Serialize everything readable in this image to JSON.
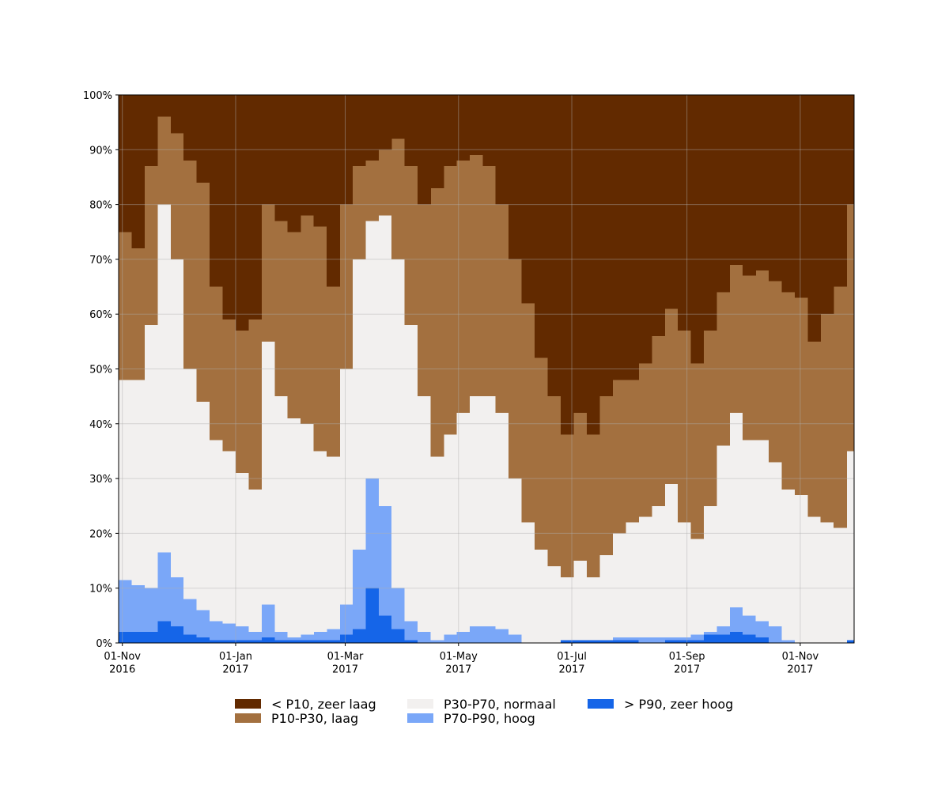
{
  "chart_data": {
    "type": "stacked-area",
    "x": [
      "2016-10-30",
      "2016-11-06",
      "2016-11-13",
      "2016-11-20",
      "2016-11-27",
      "2016-12-04",
      "2016-12-11",
      "2016-12-18",
      "2016-12-25",
      "2017-01-01",
      "2017-01-08",
      "2017-01-15",
      "2017-01-22",
      "2017-01-29",
      "2017-02-05",
      "2017-02-12",
      "2017-02-19",
      "2017-02-26",
      "2017-03-05",
      "2017-03-12",
      "2017-03-19",
      "2017-03-26",
      "2017-04-02",
      "2017-04-09",
      "2017-04-16",
      "2017-04-23",
      "2017-04-30",
      "2017-05-07",
      "2017-05-14",
      "2017-05-21",
      "2017-05-28",
      "2017-06-04",
      "2017-06-11",
      "2017-06-18",
      "2017-06-25",
      "2017-07-02",
      "2017-07-09",
      "2017-07-16",
      "2017-07-23",
      "2017-07-30",
      "2017-08-06",
      "2017-08-13",
      "2017-08-20",
      "2017-08-27",
      "2017-09-03",
      "2017-09-10",
      "2017-09-17",
      "2017-09-24",
      "2017-10-01",
      "2017-10-08",
      "2017-10-15",
      "2017-10-22",
      "2017-10-29",
      "2017-11-05",
      "2017-11-12",
      "2017-11-19",
      "2017-11-26"
    ],
    "series": [
      {
        "name": "< P10, zeer laag",
        "color": "#622a00",
        "values": [
          25,
          28,
          13,
          4,
          7,
          12,
          16,
          35,
          41,
          43,
          41,
          20,
          23,
          25,
          22,
          24,
          35,
          20,
          13,
          12,
          10,
          8,
          13,
          20,
          17,
          13,
          12,
          11,
          13,
          20,
          30,
          38,
          48,
          55,
          62,
          58,
          62,
          55,
          52,
          52,
          49,
          44,
          39,
          43,
          49,
          43,
          36,
          31,
          33,
          32,
          34,
          36,
          37,
          45,
          40,
          35,
          20
        ]
      },
      {
        "name": "P10-P30, laag",
        "color": "#a3703f",
        "values": [
          27,
          24,
          29,
          16,
          23,
          38,
          40,
          28,
          24,
          26,
          31,
          25,
          32,
          34,
          38,
          41,
          31,
          30,
          17,
          11,
          12,
          22,
          29,
          35,
          49,
          49,
          46,
          44,
          42,
          38,
          40,
          40,
          35,
          31,
          26,
          27,
          26,
          29,
          28,
          26,
          28,
          31,
          32,
          35,
          32,
          32,
          28,
          27,
          30,
          31,
          33,
          36,
          36,
          32,
          38,
          44,
          45
        ]
      },
      {
        "name": "P30-P70, normaal",
        "color": "#f2f0ef",
        "values": [
          36.5,
          37.5,
          48,
          63.5,
          58,
          42,
          38,
          33,
          31.5,
          28,
          26,
          48,
          43,
          40,
          38.5,
          33,
          31.5,
          43,
          53,
          47,
          53,
          60,
          54,
          43,
          33.5,
          36.5,
          40,
          42,
          42,
          39.5,
          28.5,
          22,
          17,
          14,
          11.5,
          14.5,
          11.5,
          15.5,
          19,
          21,
          22,
          24,
          28,
          21,
          17.5,
          23,
          33,
          35.5,
          32,
          33,
          30,
          27.5,
          27,
          23,
          22,
          21,
          34.5
        ]
      },
      {
        "name": "P70-P90, hoog",
        "color": "#7aa7f8",
        "values": [
          9.5,
          8.5,
          8,
          12.5,
          9,
          6.5,
          5,
          3.5,
          3,
          2.5,
          1.5,
          6,
          1.5,
          0.5,
          1,
          1.5,
          2,
          5.5,
          14.5,
          20,
          20,
          7.5,
          3.5,
          2,
          0.5,
          1.5,
          2,
          3,
          3,
          2.5,
          1.5,
          0,
          0,
          0,
          0,
          0,
          0,
          0,
          0.5,
          0.5,
          1,
          1,
          0.5,
          0.5,
          1,
          0.5,
          1.5,
          4.5,
          3.5,
          3,
          3,
          0.5,
          0,
          0,
          0,
          0,
          0
        ]
      },
      {
        "name": "> P90, zeer hoog",
        "color": "#1565e8",
        "values": [
          2,
          2,
          2,
          4,
          3,
          1.5,
          1,
          0.5,
          0.5,
          0.5,
          0.5,
          1,
          0.5,
          0.5,
          0.5,
          0.5,
          0.5,
          1.5,
          2.5,
          10,
          5,
          2.5,
          0.5,
          0,
          0,
          0,
          0,
          0,
          0,
          0,
          0,
          0,
          0,
          0,
          0.5,
          0.5,
          0.5,
          0.5,
          0.5,
          0.5,
          0,
          0,
          0.5,
          0.5,
          0.5,
          1.5,
          1.5,
          2,
          1.5,
          1,
          0,
          0,
          0,
          0,
          0,
          0,
          0.5
        ]
      }
    ],
    "xlim": [
      "2016-10-30",
      "2017-11-30"
    ],
    "xticks": [
      {
        "value": "2016-11-01",
        "label": "01-Nov\n2016"
      },
      {
        "value": "2017-01-01",
        "label": "01-Jan\n2017"
      },
      {
        "value": "2017-03-01",
        "label": "01-Mar\n2017"
      },
      {
        "value": "2017-05-01",
        "label": "01-May\n2017"
      },
      {
        "value": "2017-07-01",
        "label": "01-Jul\n2017"
      },
      {
        "value": "2017-09-01",
        "label": "01-Sep\n2017"
      },
      {
        "value": "2017-11-01",
        "label": "01-Nov\n2017"
      }
    ],
    "ylim": [
      0,
      100
    ],
    "yticks": [
      {
        "value": 0,
        "label": "0%"
      },
      {
        "value": 10,
        "label": "10%"
      },
      {
        "value": 20,
        "label": "20%"
      },
      {
        "value": 30,
        "label": "30%"
      },
      {
        "value": 40,
        "label": "40%"
      },
      {
        "value": 50,
        "label": "50%"
      },
      {
        "value": 60,
        "label": "60%"
      },
      {
        "value": 70,
        "label": "70%"
      },
      {
        "value": 80,
        "label": "80%"
      },
      {
        "value": 90,
        "label": "90%"
      },
      {
        "value": 100,
        "label": "100%"
      }
    ],
    "grid": true
  }
}
